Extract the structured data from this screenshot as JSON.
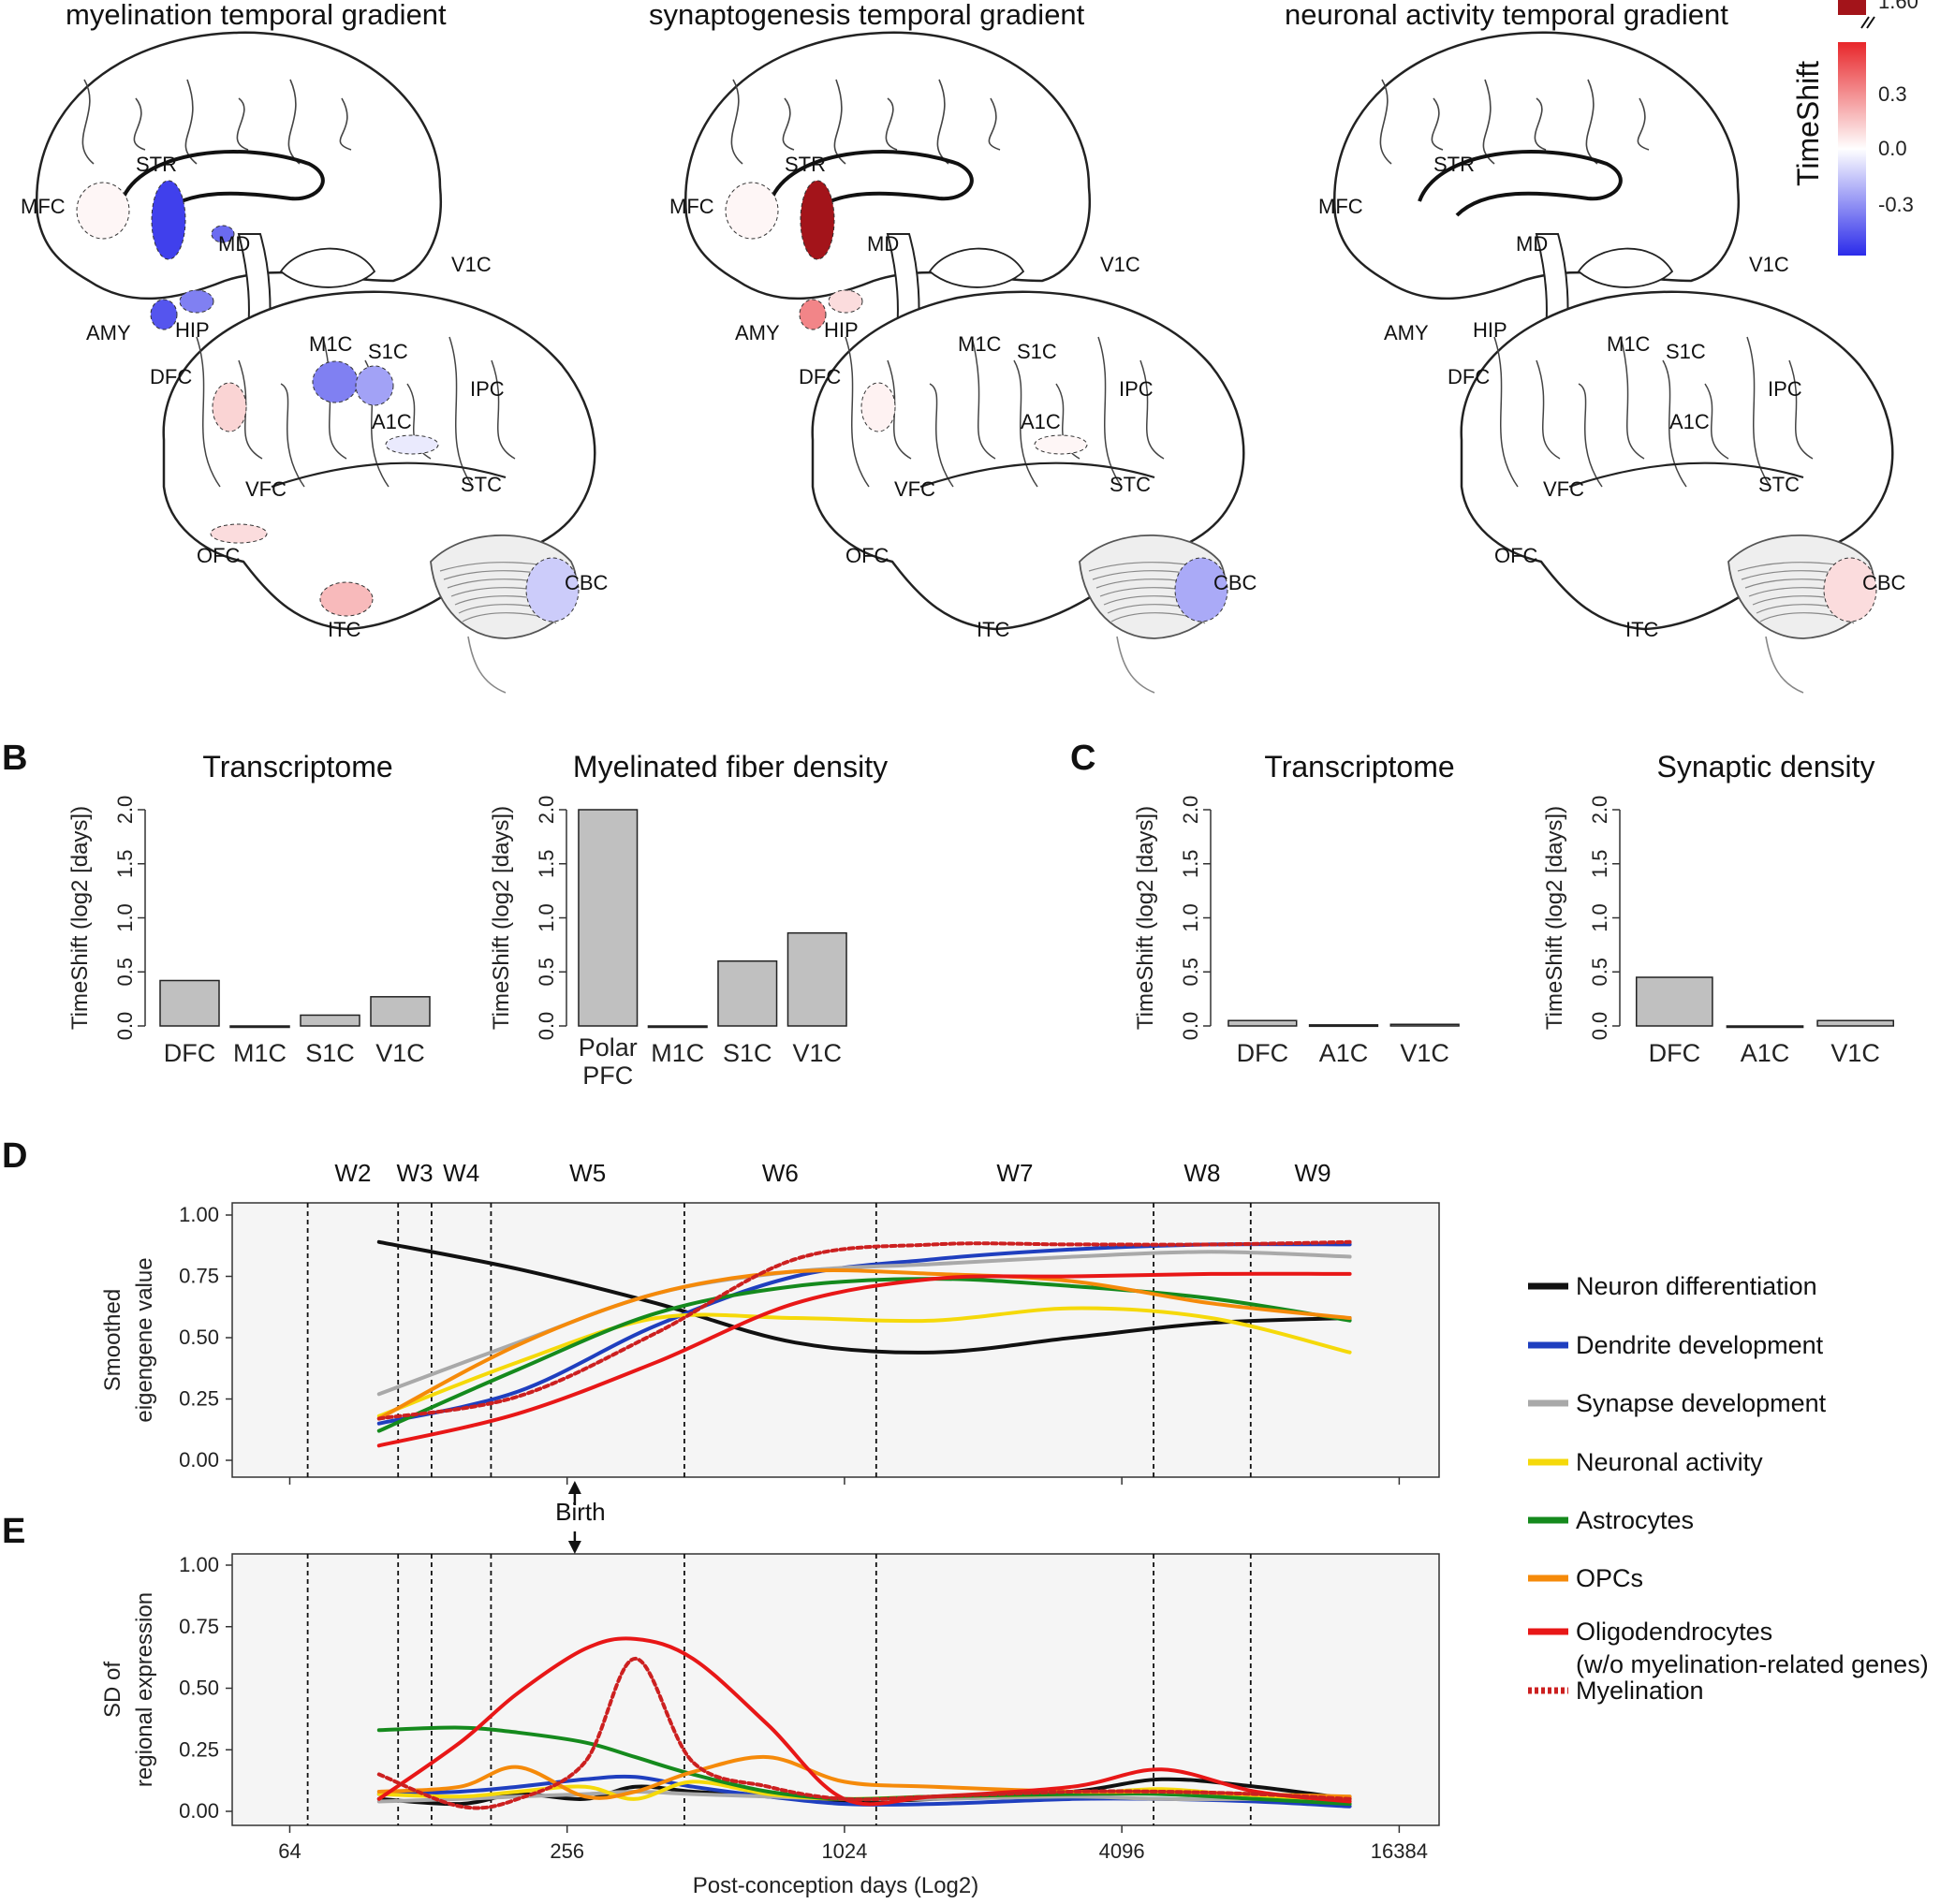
{
  "brains": {
    "titles": [
      "myelination temporal gradient",
      "synaptogenesis temporal gradient",
      "neuronal activity temporal gradient"
    ],
    "region_labels": [
      "MFC",
      "STR",
      "MD",
      "V1C",
      "AMY",
      "HIP",
      "DFC",
      "M1C",
      "S1C",
      "IPC",
      "A1C",
      "VFC",
      "STC",
      "OFC",
      "CBC",
      "ITC"
    ],
    "colorbar": {
      "title": "TimeShift",
      "ticks": [
        "1.60",
        "0.3",
        "0.0",
        "-0.3"
      ],
      "colors": {
        "high": "#e8262a",
        "mid": "#ffffff",
        "low": "#2b2bea",
        "extreme": "#a3141a"
      }
    },
    "region_shift": [
      {
        "STR": -0.45,
        "MD": -0.35,
        "HIP": -0.3,
        "AMY": -0.4,
        "M1C": -0.3,
        "S1C": -0.22,
        "A1C": -0.05,
        "DFC": 0.1,
        "OFC": 0.08,
        "ITC": 0.16,
        "CBC": -0.12,
        "MFC": 0.02
      },
      {
        "STR": 1.6,
        "AMY": 0.28,
        "HIP": 0.08,
        "CBC": -0.2,
        "MFC": 0.02,
        "DFC": 0.03,
        "A1C": 0.02
      },
      {
        "CBC": 0.08
      }
    ]
  },
  "panel_letters": {
    "b": "B",
    "c": "C",
    "d": "D",
    "e": "E"
  },
  "bar_ylabel": "TimeShift (log2 [days])",
  "bar_yticks": [
    "0.0",
    "0.5",
    "1.0",
    "1.5",
    "2.0"
  ],
  "line_panels": {
    "windows": [
      "W2",
      "W3",
      "W4",
      "W5",
      "W6",
      "W7",
      "W8",
      "W9"
    ],
    "d_ylabel": [
      "Smoothed",
      "eigengene value"
    ],
    "e_ylabel": [
      "SD of",
      "regional expression"
    ],
    "yticks": [
      "0.00",
      "0.25",
      "0.50",
      "0.75",
      "1.00"
    ],
    "xticks": [
      "64",
      "256",
      "1024",
      "4096",
      "16384"
    ],
    "xlabel": "Post-conception days (Log2)",
    "birth": "Birth"
  },
  "legend": [
    {
      "label": "Neuron differentiation",
      "color": "#111111",
      "dashed": false
    },
    {
      "label": "Dendrite development",
      "color": "#1f3fbf",
      "dashed": false
    },
    {
      "label": "Synapse development",
      "color": "#a9a9a9",
      "dashed": false
    },
    {
      "label": "Neuronal activity",
      "color": "#f5d90a",
      "dashed": false
    },
    {
      "label": "Astrocytes",
      "color": "#158a1d",
      "dashed": false
    },
    {
      "label": "OPCs",
      "color": "#f58a0a",
      "dashed": false
    },
    {
      "label": "Oligodendrocytes",
      "label2": "(w/o myelination-related genes)",
      "color": "#e81717",
      "dashed": false
    },
    {
      "label": "Myelination",
      "color": "#cc2020",
      "dashed": true
    }
  ],
  "chart_data": [
    {
      "type": "bar",
      "title": "Transcriptome",
      "ylabel": "TimeShift (log2 [days])",
      "ylim": [
        0,
        2
      ],
      "categories": [
        "DFC",
        "M1C",
        "S1C",
        "V1C"
      ],
      "values": [
        0.42,
        0.0,
        0.1,
        0.27
      ]
    },
    {
      "type": "bar",
      "title": "Myelinated fiber density",
      "ylabel": "TimeShift (log2 [days])",
      "ylim": [
        0,
        2
      ],
      "categories": [
        "Polar PFC",
        "M1C",
        "S1C",
        "V1C"
      ],
      "values": [
        2.0,
        0.0,
        0.6,
        0.86
      ]
    },
    {
      "type": "bar",
      "title": "Transcriptome",
      "ylabel": "TimeShift (log2 [days])",
      "ylim": [
        0,
        2
      ],
      "categories": [
        "DFC",
        "A1C",
        "V1C"
      ],
      "values": [
        0.05,
        0.01,
        0.015
      ]
    },
    {
      "type": "bar",
      "title": "Synaptic density",
      "ylabel": "TimeShift (log2 [days])",
      "ylim": [
        0,
        2
      ],
      "categories": [
        "DFC",
        "A1C",
        "V1C"
      ],
      "values": [
        0.45,
        0.0,
        0.05
      ]
    },
    {
      "type": "line",
      "ylabel": "Smoothed eigengene value",
      "ylim": [
        0,
        1
      ],
      "x_log2": true,
      "xlim": [
        48,
        20000
      ],
      "window_boundaries": [
        70,
        110,
        130,
        175,
        460,
        1200,
        4800,
        7800
      ],
      "birth": 266,
      "x": [
        100,
        200,
        400,
        800,
        1600,
        3200,
        6400,
        12800
      ],
      "series": [
        {
          "name": "Neuron differentiation",
          "values": [
            0.89,
            0.78,
            0.64,
            0.48,
            0.44,
            0.5,
            0.56,
            0.58
          ]
        },
        {
          "name": "Dendrite development",
          "values": [
            0.15,
            0.28,
            0.55,
            0.75,
            0.82,
            0.86,
            0.88,
            0.88
          ]
        },
        {
          "name": "Synapse development",
          "values": [
            0.27,
            0.48,
            0.68,
            0.77,
            0.8,
            0.83,
            0.85,
            0.83
          ]
        },
        {
          "name": "Neuronal activity",
          "values": [
            0.18,
            0.4,
            0.58,
            0.58,
            0.57,
            0.62,
            0.58,
            0.44
          ]
        },
        {
          "name": "Astrocytes",
          "values": [
            0.12,
            0.37,
            0.6,
            0.71,
            0.74,
            0.71,
            0.66,
            0.57
          ]
        },
        {
          "name": "OPCs",
          "values": [
            0.17,
            0.47,
            0.68,
            0.77,
            0.76,
            0.73,
            0.64,
            0.58
          ]
        },
        {
          "name": "Oligodendrocytes",
          "values": [
            0.06,
            0.19,
            0.4,
            0.64,
            0.74,
            0.75,
            0.76,
            0.76
          ]
        },
        {
          "name": "Myelination",
          "values": [
            0.17,
            0.26,
            0.52,
            0.82,
            0.88,
            0.88,
            0.88,
            0.89
          ]
        }
      ]
    },
    {
      "type": "line",
      "ylabel": "SD of regional expression",
      "xlabel": "Post-conception days (Log2)",
      "ylim": [
        0,
        1
      ],
      "x_log2": true,
      "xlim": [
        48,
        20000
      ],
      "x": [
        100,
        150,
        200,
        280,
        360,
        480,
        700,
        1024,
        1600,
        3200,
        5000,
        8000,
        12800
      ],
      "series": [
        {
          "name": "Neuron differentiation",
          "values": [
            0.05,
            0.03,
            0.07,
            0.05,
            0.1,
            0.08,
            0.06,
            0.04,
            0.05,
            0.08,
            0.13,
            0.1,
            0.05
          ]
        },
        {
          "name": "Dendrite development",
          "values": [
            0.07,
            0.08,
            0.1,
            0.13,
            0.14,
            0.1,
            0.06,
            0.03,
            0.03,
            0.05,
            0.05,
            0.04,
            0.02
          ]
        },
        {
          "name": "Synapse development",
          "values": [
            0.04,
            0.05,
            0.06,
            0.07,
            0.08,
            0.07,
            0.06,
            0.05,
            0.05,
            0.06,
            0.05,
            0.05,
            0.06
          ]
        },
        {
          "name": "Neuronal activity",
          "values": [
            0.07,
            0.06,
            0.08,
            0.1,
            0.05,
            0.12,
            0.07,
            0.05,
            0.06,
            0.07,
            0.09,
            0.06,
            0.05
          ]
        },
        {
          "name": "Astrocytes",
          "values": [
            0.33,
            0.34,
            0.32,
            0.28,
            0.22,
            0.15,
            0.08,
            0.05,
            0.06,
            0.07,
            0.07,
            0.05,
            0.03
          ]
        },
        {
          "name": "OPCs",
          "values": [
            0.08,
            0.1,
            0.18,
            0.06,
            0.08,
            0.16,
            0.22,
            0.12,
            0.1,
            0.08,
            0.08,
            0.07,
            0.06
          ]
        },
        {
          "name": "Oligodendrocytes",
          "values": [
            0.05,
            0.28,
            0.48,
            0.66,
            0.7,
            0.62,
            0.35,
            0.05,
            0.06,
            0.1,
            0.17,
            0.08,
            0.04
          ]
        },
        {
          "name": "Myelination",
          "values": [
            0.15,
            0.02,
            0.05,
            0.2,
            0.62,
            0.2,
            0.1,
            0.05,
            0.06,
            0.08,
            0.08,
            0.07,
            0.05
          ]
        }
      ]
    }
  ]
}
